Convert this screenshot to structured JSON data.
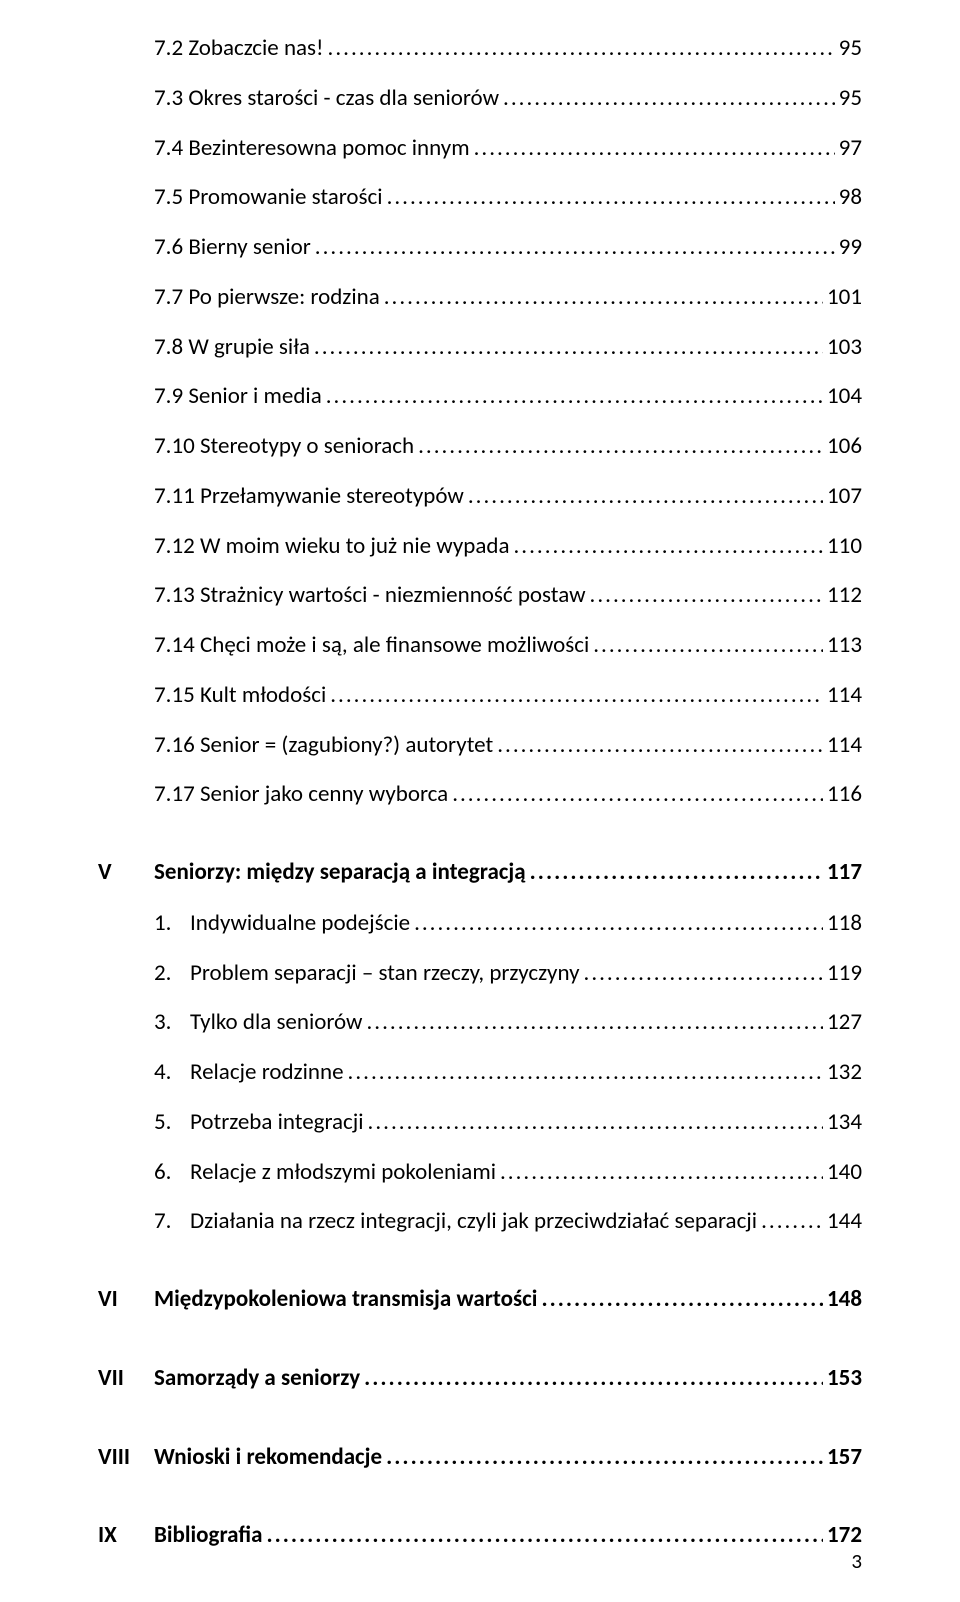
{
  "page_number": "3",
  "sub_items_a": [
    {
      "label": "7.2 Zobaczcie nas!",
      "page": "95"
    },
    {
      "label": "7.3 Okres starości - czas dla seniorów",
      "page": "95"
    },
    {
      "label": "7.4 Bezinteresowna pomoc innym",
      "page": "97"
    },
    {
      "label": "7.5 Promowanie starości",
      "page": "98"
    },
    {
      "label": "7.6 Bierny senior",
      "page": "99"
    },
    {
      "label": "7.7 Po pierwsze: rodzina",
      "page": "101"
    },
    {
      "label": "7.8 W grupie siła",
      "page": "103"
    },
    {
      "label": "7.9 Senior i media",
      "page": "104"
    },
    {
      "label": "7.10 Stereotypy o seniorach",
      "page": "106"
    },
    {
      "label": "7.11 Przełamywanie stereotypów",
      "page": "107"
    },
    {
      "label": "7.12 W moim wieku to już nie wypada",
      "page": "110"
    },
    {
      "label": "7.13 Strażnicy wartości - niezmienność postaw",
      "page": "112"
    },
    {
      "label": "7.14 Chęci może i są, ale finansowe możliwości",
      "page": "113"
    },
    {
      "label": "7.15 Kult młodości",
      "page": "114"
    },
    {
      "label": "7.16 Senior = (zagubiony?) autorytet",
      "page": "114"
    },
    {
      "label": "7.17 Senior jako cenny wyborca",
      "page": "116"
    }
  ],
  "chapter_v": {
    "num": "V",
    "label": "Seniorzy: między separacją a integracją",
    "page": "117"
  },
  "num_items_v": [
    {
      "num": "1.",
      "label": "Indywidualne podejście",
      "page": "118"
    },
    {
      "num": "2.",
      "label": "Problem separacji – stan rzeczy, przyczyny",
      "page": "119"
    },
    {
      "num": "3.",
      "label": "Tylko dla seniorów",
      "page": "127"
    },
    {
      "num": "4.",
      "label": "Relacje rodzinne",
      "page": "132"
    },
    {
      "num": "5.",
      "label": "Potrzeba integracji",
      "page": "134"
    },
    {
      "num": "6.",
      "label": "Relacje z młodszymi pokoleniami",
      "page": "140"
    },
    {
      "num": "7.",
      "label": "Działania na rzecz integracji, czyli jak przeciwdziałać separacji",
      "page": "144"
    }
  ],
  "chapters_rest": [
    {
      "num": "VI",
      "label": "Międzypokoleniowa transmisja wartości",
      "page": "148"
    },
    {
      "num": "VII",
      "label": "Samorządy a seniorzy",
      "page": "153"
    },
    {
      "num": "VIII",
      "label": "Wnioski i rekomendacje",
      "page": "157"
    },
    {
      "num": "IX",
      "label": "Bibliografia",
      "page": "172"
    }
  ]
}
